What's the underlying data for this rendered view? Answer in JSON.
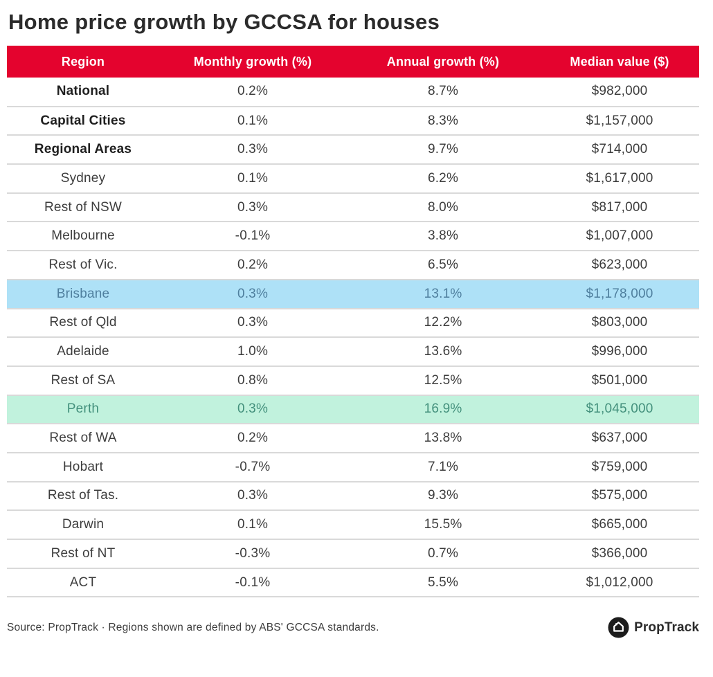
{
  "title": "Home price growth by GCCSA for houses",
  "table": {
    "columns": [
      "Region",
      "Monthly growth (%)",
      "Annual growth (%)",
      "Median value ($)"
    ],
    "rows": [
      {
        "region": "National",
        "monthly": "0.2%",
        "annual": "8.7%",
        "median": "$982,000",
        "style": "bold"
      },
      {
        "region": "Capital Cities",
        "monthly": "0.1%",
        "annual": "8.3%",
        "median": "$1,157,000",
        "style": "bold"
      },
      {
        "region": "Regional Areas",
        "monthly": "0.3%",
        "annual": "9.7%",
        "median": "$714,000",
        "style": "bold"
      },
      {
        "region": "Sydney",
        "monthly": "0.1%",
        "annual": "6.2%",
        "median": "$1,617,000",
        "style": "normal"
      },
      {
        "region": "Rest of NSW",
        "monthly": "0.3%",
        "annual": "8.0%",
        "median": "$817,000",
        "style": "normal"
      },
      {
        "region": "Melbourne",
        "monthly": "-0.1%",
        "annual": "3.8%",
        "median": "$1,007,000",
        "style": "normal"
      },
      {
        "region": "Rest of Vic.",
        "monthly": "0.2%",
        "annual": "6.5%",
        "median": "$623,000",
        "style": "normal"
      },
      {
        "region": "Brisbane",
        "monthly": "0.3%",
        "annual": "13.1%",
        "median": "$1,178,000",
        "style": "highlight-blue"
      },
      {
        "region": "Rest of Qld",
        "monthly": "0.3%",
        "annual": "12.2%",
        "median": "$803,000",
        "style": "normal"
      },
      {
        "region": "Adelaide",
        "monthly": "1.0%",
        "annual": "13.6%",
        "median": "$996,000",
        "style": "normal"
      },
      {
        "region": "Rest of SA",
        "monthly": "0.8%",
        "annual": "12.5%",
        "median": "$501,000",
        "style": "normal"
      },
      {
        "region": "Perth",
        "monthly": "0.3%",
        "annual": "16.9%",
        "median": "$1,045,000",
        "style": "highlight-green"
      },
      {
        "region": "Rest of WA",
        "monthly": "0.2%",
        "annual": "13.8%",
        "median": "$637,000",
        "style": "normal"
      },
      {
        "region": "Hobart",
        "monthly": "-0.7%",
        "annual": "7.1%",
        "median": "$759,000",
        "style": "normal"
      },
      {
        "region": "Rest of Tas.",
        "monthly": "0.3%",
        "annual": "9.3%",
        "median": "$575,000",
        "style": "normal"
      },
      {
        "region": "Darwin",
        "monthly": "0.1%",
        "annual": "15.5%",
        "median": "$665,000",
        "style": "normal"
      },
      {
        "region": "Rest of NT",
        "monthly": "-0.3%",
        "annual": "0.7%",
        "median": "$366,000",
        "style": "normal"
      },
      {
        "region": "ACT",
        "monthly": "-0.1%",
        "annual": "5.5%",
        "median": "$1,012,000",
        "style": "normal"
      }
    ]
  },
  "footer": {
    "source": "Source: PropTrack · Regions shown are defined by ABS' GCCSA standards.",
    "logo_text": "PropTrack",
    "logo_icon": "house-icon"
  },
  "colors": {
    "header_red": "#e4032e",
    "header_text": "#ffffff",
    "title_text": "#2b2b2b",
    "body_text": "#3d3d3d",
    "divider": "#d9d9d9",
    "highlight_blue_bg": "#aee1f7",
    "highlight_blue_text": "#4f7f9e",
    "highlight_green_bg": "#c1f2dd",
    "highlight_green_text": "#43907c",
    "logo_black": "#1c1c1c"
  },
  "chart_data": {
    "type": "table",
    "title": "Home price growth by GCCSA for houses",
    "columns": [
      "Region",
      "Monthly growth (%)",
      "Annual growth (%)",
      "Median value ($)"
    ],
    "rows": [
      [
        "National",
        0.2,
        8.7,
        982000
      ],
      [
        "Capital Cities",
        0.1,
        8.3,
        1157000
      ],
      [
        "Regional Areas",
        0.3,
        9.7,
        714000
      ],
      [
        "Sydney",
        0.1,
        6.2,
        1617000
      ],
      [
        "Rest of NSW",
        0.3,
        8.0,
        817000
      ],
      [
        "Melbourne",
        -0.1,
        3.8,
        1007000
      ],
      [
        "Rest of Vic.",
        0.2,
        6.5,
        623000
      ],
      [
        "Brisbane",
        0.3,
        13.1,
        1178000
      ],
      [
        "Rest of Qld",
        0.3,
        12.2,
        803000
      ],
      [
        "Adelaide",
        1.0,
        13.6,
        996000
      ],
      [
        "Rest of SA",
        0.8,
        12.5,
        501000
      ],
      [
        "Perth",
        0.3,
        16.9,
        1045000
      ],
      [
        "Rest of WA",
        0.2,
        13.8,
        637000
      ],
      [
        "Hobart",
        -0.7,
        7.1,
        759000
      ],
      [
        "Rest of Tas.",
        0.3,
        9.3,
        575000
      ],
      [
        "Darwin",
        0.1,
        15.5,
        665000
      ],
      [
        "Rest of NT",
        -0.3,
        0.7,
        366000
      ],
      [
        "ACT",
        -0.1,
        5.5,
        1012000
      ]
    ],
    "bold_rows": [
      "National",
      "Capital Cities",
      "Regional Areas"
    ],
    "highlights": {
      "blue_row": "Brisbane",
      "green_row": "Perth"
    },
    "source": "Source: PropTrack · Regions shown are defined by ABS' GCCSA standards."
  }
}
